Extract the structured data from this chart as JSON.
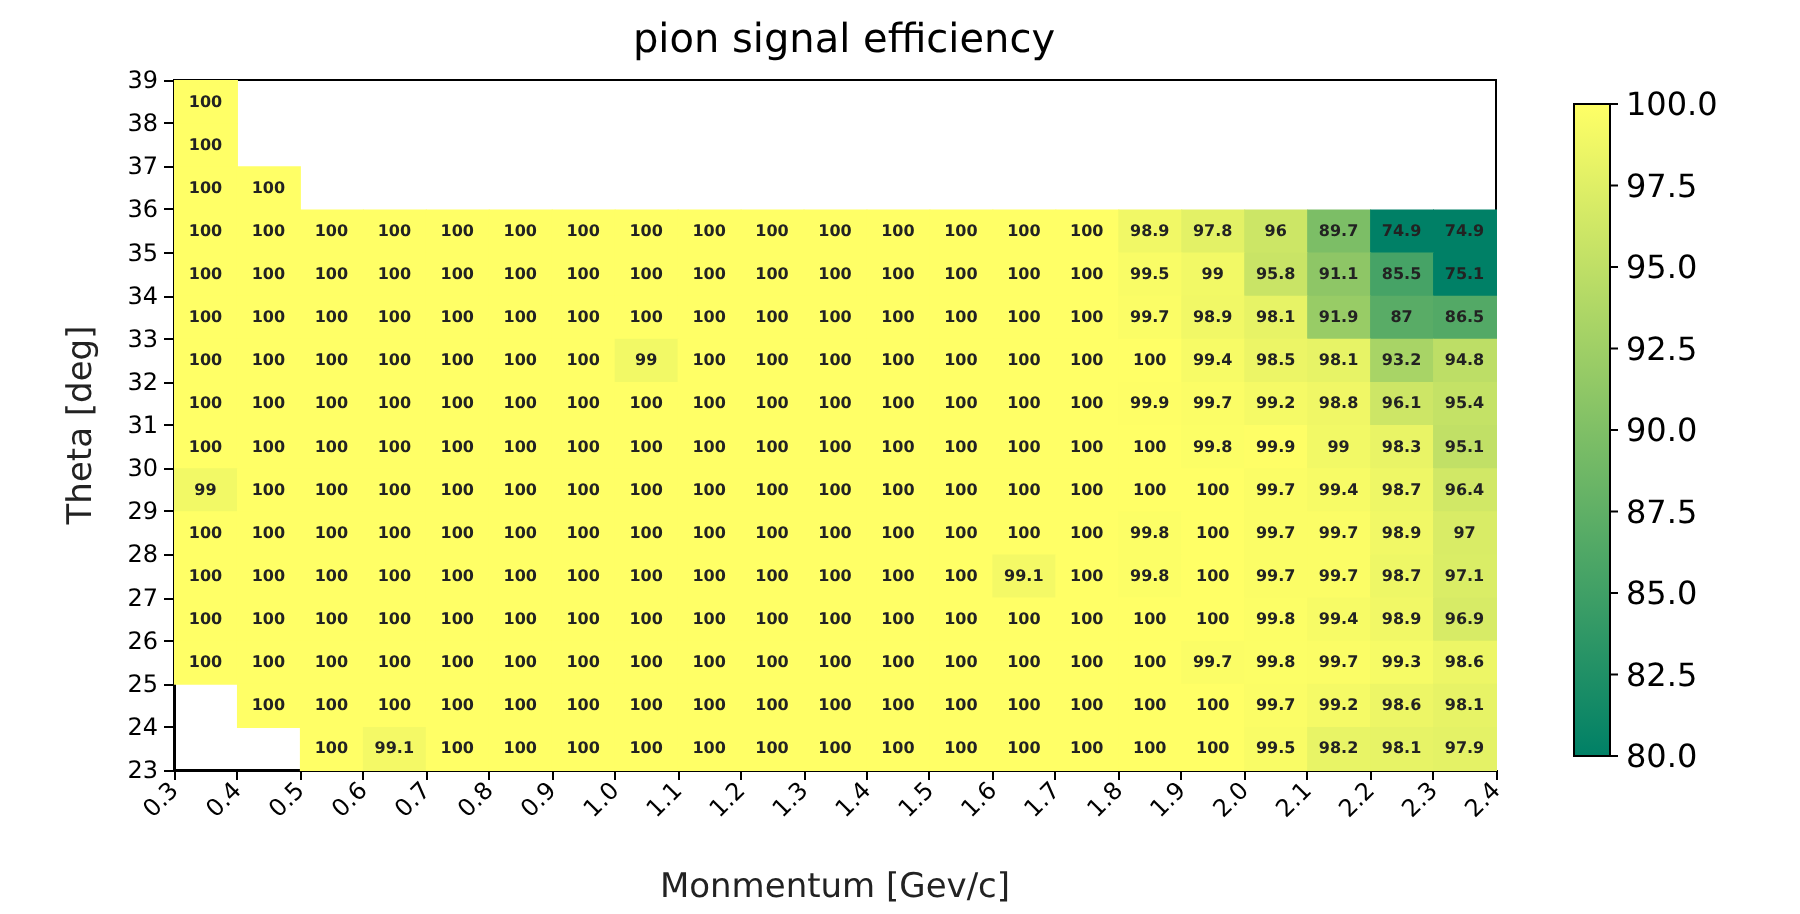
{
  "chart_data": {
    "type": "heatmap",
    "title": "pion signal efficiency",
    "xlabel": "Monmentum [Gev/c]",
    "ylabel": "Theta [deg]",
    "xlim": [
      0.3,
      2.4
    ],
    "xticks": [
      0.3,
      0.4,
      0.5,
      0.6,
      0.7,
      0.8,
      0.9,
      {
        "value": 1.0,
        "label": "1.0"
      },
      1.1,
      1.2,
      1.3,
      1.4,
      1.5,
      1.6,
      1.7,
      1.8,
      1.9,
      {
        "value": 2.0,
        "label": "2.0"
      },
      2.1,
      2.2,
      2.3,
      2.4
    ],
    "ylim": [
      23,
      39
    ],
    "yticks": [
      23,
      24,
      25,
      26,
      27,
      28,
      29,
      30,
      31,
      32,
      33,
      34,
      35,
      36,
      37,
      38,
      39
    ],
    "clim": [
      80,
      100
    ],
    "cticks": [
      {
        "value": 80,
        "label": "80.0"
      },
      {
        "value": 82.5,
        "label": "82.5"
      },
      {
        "value": 85,
        "label": "85.0"
      },
      {
        "value": 87.5,
        "label": "87.5"
      },
      {
        "value": 90,
        "label": "90.0"
      },
      {
        "value": 92.5,
        "label": "92.5"
      },
      {
        "value": 95,
        "label": "95.0"
      },
      {
        "value": 97.5,
        "label": "97.5"
      },
      {
        "value": 100,
        "label": "100.0"
      }
    ],
    "data_labels": true,
    "cells": [
      [
        100,
        null,
        null,
        null,
        null,
        null,
        null,
        null,
        null,
        null,
        null,
        null,
        null,
        null,
        null,
        null,
        null,
        null,
        null,
        null,
        null
      ],
      [
        100,
        null,
        null,
        null,
        null,
        null,
        null,
        null,
        null,
        null,
        null,
        null,
        null,
        null,
        null,
        null,
        null,
        null,
        null,
        null,
        null
      ],
      [
        100,
        100,
        null,
        null,
        null,
        null,
        null,
        null,
        null,
        null,
        null,
        null,
        null,
        null,
        null,
        null,
        null,
        null,
        null,
        null,
        null
      ],
      [
        100,
        100,
        100,
        100,
        100,
        100,
        100,
        100,
        100,
        100,
        100,
        100,
        100,
        100,
        100,
        98.9,
        97.8,
        96,
        89.7,
        74.9,
        74.9
      ],
      [
        100,
        100,
        100,
        100,
        100,
        100,
        100,
        100,
        100,
        100,
        100,
        100,
        100,
        100,
        100,
        99.5,
        99,
        95.8,
        91.1,
        85.5,
        75.1
      ],
      [
        100,
        100,
        100,
        100,
        100,
        100,
        100,
        100,
        100,
        100,
        100,
        100,
        100,
        100,
        100,
        99.7,
        98.9,
        98.1,
        91.9,
        87,
        86.5
      ],
      [
        100,
        100,
        100,
        100,
        100,
        100,
        100,
        99,
        100,
        100,
        100,
        100,
        100,
        100,
        100,
        100,
        99.4,
        98.5,
        98.1,
        93.2,
        94.8
      ],
      [
        100,
        100,
        100,
        100,
        100,
        100,
        100,
        100,
        100,
        100,
        100,
        100,
        100,
        100,
        100,
        99.9,
        99.7,
        99.2,
        98.8,
        96.1,
        95.4
      ],
      [
        100,
        100,
        100,
        100,
        100,
        100,
        100,
        100,
        100,
        100,
        100,
        100,
        100,
        100,
        100,
        100,
        99.8,
        99.9,
        99,
        98.3,
        95.1
      ],
      [
        99,
        100,
        100,
        100,
        100,
        100,
        100,
        100,
        100,
        100,
        100,
        100,
        100,
        100,
        100,
        100,
        100,
        99.7,
        99.4,
        98.7,
        96.4
      ],
      [
        100,
        100,
        100,
        100,
        100,
        100,
        100,
        100,
        100,
        100,
        100,
        100,
        100,
        100,
        100,
        99.8,
        100,
        99.7,
        99.7,
        98.9,
        97
      ],
      [
        100,
        100,
        100,
        100,
        100,
        100,
        100,
        100,
        100,
        100,
        100,
        100,
        100,
        99.1,
        100,
        99.8,
        100,
        99.7,
        99.7,
        98.7,
        97.1
      ],
      [
        100,
        100,
        100,
        100,
        100,
        100,
        100,
        100,
        100,
        100,
        100,
        100,
        100,
        100,
        100,
        100,
        100,
        99.8,
        99.4,
        98.9,
        96.9
      ],
      [
        100,
        100,
        100,
        100,
        100,
        100,
        100,
        100,
        100,
        100,
        100,
        100,
        100,
        100,
        100,
        100,
        99.7,
        99.8,
        99.7,
        99.3,
        98.6
      ],
      [
        null,
        100,
        100,
        100,
        100,
        100,
        100,
        100,
        100,
        100,
        100,
        100,
        100,
        100,
        100,
        100,
        100,
        99.7,
        99.2,
        98.6,
        98.1
      ],
      [
        null,
        null,
        100,
        99.1,
        100,
        100,
        100,
        100,
        100,
        100,
        100,
        100,
        100,
        100,
        100,
        100,
        100,
        99.5,
        98.2,
        98.1,
        97.9
      ]
    ]
  }
}
